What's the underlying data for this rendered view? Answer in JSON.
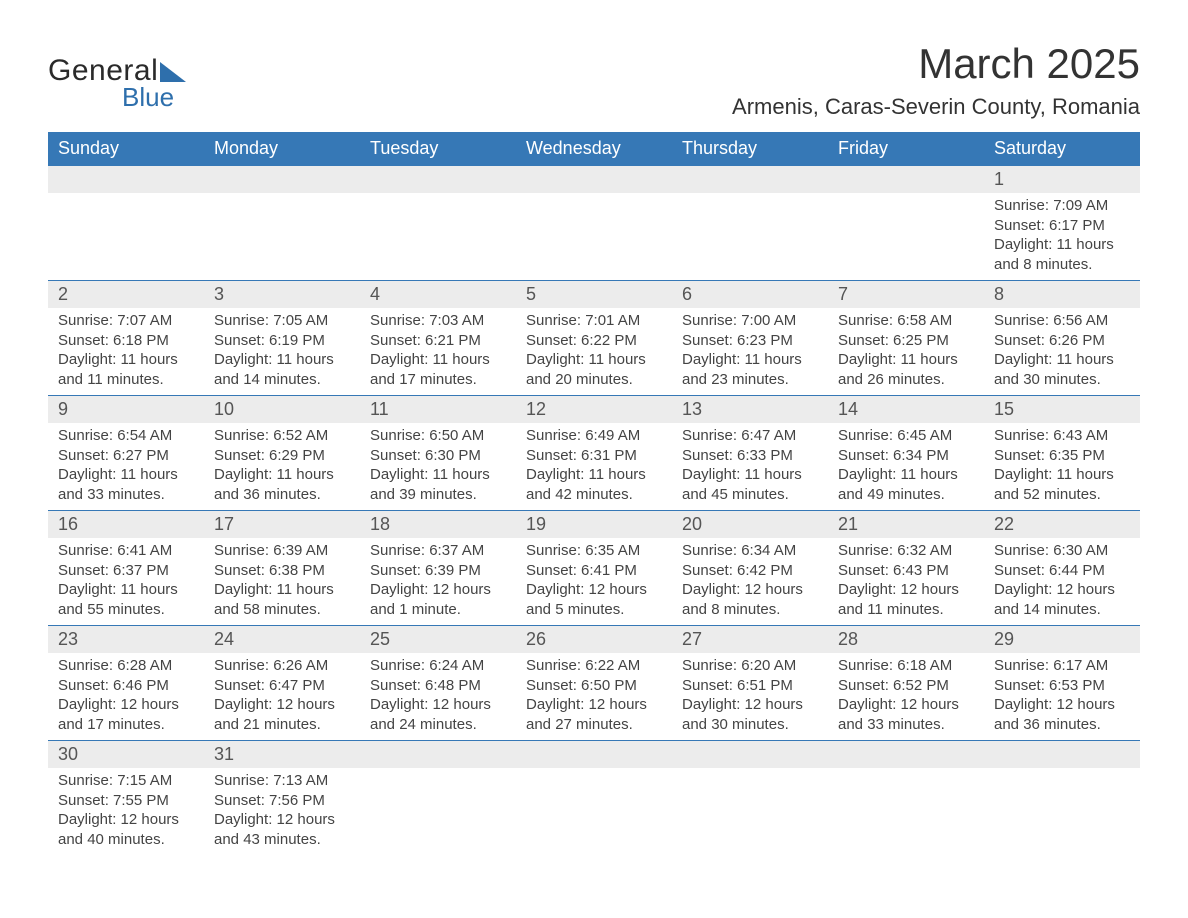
{
  "logo": {
    "part1": "General",
    "part2": "Blue"
  },
  "header": {
    "title": "March 2025",
    "location": "Armenis, Caras-Severin County, Romania"
  },
  "style": {
    "header_bg": "#3678b6",
    "header_text": "#ffffff",
    "row_separator": "#3678b6",
    "daynum_bg": "#ececec",
    "body_text": "#444444",
    "title_fontsize_pt": 32,
    "location_fontsize_pt": 17,
    "dayheader_fontsize_pt": 14,
    "cell_fontsize_pt": 11
  },
  "calendar": {
    "type": "table",
    "columns": [
      "Sunday",
      "Monday",
      "Tuesday",
      "Wednesday",
      "Thursday",
      "Friday",
      "Saturday"
    ],
    "weeks": [
      [
        null,
        null,
        null,
        null,
        null,
        null,
        {
          "d": "1",
          "sr": "Sunrise: 7:09 AM",
          "ss": "Sunset: 6:17 PM",
          "dl1": "Daylight: 11 hours",
          "dl2": "and 8 minutes."
        }
      ],
      [
        {
          "d": "2",
          "sr": "Sunrise: 7:07 AM",
          "ss": "Sunset: 6:18 PM",
          "dl1": "Daylight: 11 hours",
          "dl2": "and 11 minutes."
        },
        {
          "d": "3",
          "sr": "Sunrise: 7:05 AM",
          "ss": "Sunset: 6:19 PM",
          "dl1": "Daylight: 11 hours",
          "dl2": "and 14 minutes."
        },
        {
          "d": "4",
          "sr": "Sunrise: 7:03 AM",
          "ss": "Sunset: 6:21 PM",
          "dl1": "Daylight: 11 hours",
          "dl2": "and 17 minutes."
        },
        {
          "d": "5",
          "sr": "Sunrise: 7:01 AM",
          "ss": "Sunset: 6:22 PM",
          "dl1": "Daylight: 11 hours",
          "dl2": "and 20 minutes."
        },
        {
          "d": "6",
          "sr": "Sunrise: 7:00 AM",
          "ss": "Sunset: 6:23 PM",
          "dl1": "Daylight: 11 hours",
          "dl2": "and 23 minutes."
        },
        {
          "d": "7",
          "sr": "Sunrise: 6:58 AM",
          "ss": "Sunset: 6:25 PM",
          "dl1": "Daylight: 11 hours",
          "dl2": "and 26 minutes."
        },
        {
          "d": "8",
          "sr": "Sunrise: 6:56 AM",
          "ss": "Sunset: 6:26 PM",
          "dl1": "Daylight: 11 hours",
          "dl2": "and 30 minutes."
        }
      ],
      [
        {
          "d": "9",
          "sr": "Sunrise: 6:54 AM",
          "ss": "Sunset: 6:27 PM",
          "dl1": "Daylight: 11 hours",
          "dl2": "and 33 minutes."
        },
        {
          "d": "10",
          "sr": "Sunrise: 6:52 AM",
          "ss": "Sunset: 6:29 PM",
          "dl1": "Daylight: 11 hours",
          "dl2": "and 36 minutes."
        },
        {
          "d": "11",
          "sr": "Sunrise: 6:50 AM",
          "ss": "Sunset: 6:30 PM",
          "dl1": "Daylight: 11 hours",
          "dl2": "and 39 minutes."
        },
        {
          "d": "12",
          "sr": "Sunrise: 6:49 AM",
          "ss": "Sunset: 6:31 PM",
          "dl1": "Daylight: 11 hours",
          "dl2": "and 42 minutes."
        },
        {
          "d": "13",
          "sr": "Sunrise: 6:47 AM",
          "ss": "Sunset: 6:33 PM",
          "dl1": "Daylight: 11 hours",
          "dl2": "and 45 minutes."
        },
        {
          "d": "14",
          "sr": "Sunrise: 6:45 AM",
          "ss": "Sunset: 6:34 PM",
          "dl1": "Daylight: 11 hours",
          "dl2": "and 49 minutes."
        },
        {
          "d": "15",
          "sr": "Sunrise: 6:43 AM",
          "ss": "Sunset: 6:35 PM",
          "dl1": "Daylight: 11 hours",
          "dl2": "and 52 minutes."
        }
      ],
      [
        {
          "d": "16",
          "sr": "Sunrise: 6:41 AM",
          "ss": "Sunset: 6:37 PM",
          "dl1": "Daylight: 11 hours",
          "dl2": "and 55 minutes."
        },
        {
          "d": "17",
          "sr": "Sunrise: 6:39 AM",
          "ss": "Sunset: 6:38 PM",
          "dl1": "Daylight: 11 hours",
          "dl2": "and 58 minutes."
        },
        {
          "d": "18",
          "sr": "Sunrise: 6:37 AM",
          "ss": "Sunset: 6:39 PM",
          "dl1": "Daylight: 12 hours",
          "dl2": "and 1 minute."
        },
        {
          "d": "19",
          "sr": "Sunrise: 6:35 AM",
          "ss": "Sunset: 6:41 PM",
          "dl1": "Daylight: 12 hours",
          "dl2": "and 5 minutes."
        },
        {
          "d": "20",
          "sr": "Sunrise: 6:34 AM",
          "ss": "Sunset: 6:42 PM",
          "dl1": "Daylight: 12 hours",
          "dl2": "and 8 minutes."
        },
        {
          "d": "21",
          "sr": "Sunrise: 6:32 AM",
          "ss": "Sunset: 6:43 PM",
          "dl1": "Daylight: 12 hours",
          "dl2": "and 11 minutes."
        },
        {
          "d": "22",
          "sr": "Sunrise: 6:30 AM",
          "ss": "Sunset: 6:44 PM",
          "dl1": "Daylight: 12 hours",
          "dl2": "and 14 minutes."
        }
      ],
      [
        {
          "d": "23",
          "sr": "Sunrise: 6:28 AM",
          "ss": "Sunset: 6:46 PM",
          "dl1": "Daylight: 12 hours",
          "dl2": "and 17 minutes."
        },
        {
          "d": "24",
          "sr": "Sunrise: 6:26 AM",
          "ss": "Sunset: 6:47 PM",
          "dl1": "Daylight: 12 hours",
          "dl2": "and 21 minutes."
        },
        {
          "d": "25",
          "sr": "Sunrise: 6:24 AM",
          "ss": "Sunset: 6:48 PM",
          "dl1": "Daylight: 12 hours",
          "dl2": "and 24 minutes."
        },
        {
          "d": "26",
          "sr": "Sunrise: 6:22 AM",
          "ss": "Sunset: 6:50 PM",
          "dl1": "Daylight: 12 hours",
          "dl2": "and 27 minutes."
        },
        {
          "d": "27",
          "sr": "Sunrise: 6:20 AM",
          "ss": "Sunset: 6:51 PM",
          "dl1": "Daylight: 12 hours",
          "dl2": "and 30 minutes."
        },
        {
          "d": "28",
          "sr": "Sunrise: 6:18 AM",
          "ss": "Sunset: 6:52 PM",
          "dl1": "Daylight: 12 hours",
          "dl2": "and 33 minutes."
        },
        {
          "d": "29",
          "sr": "Sunrise: 6:17 AM",
          "ss": "Sunset: 6:53 PM",
          "dl1": "Daylight: 12 hours",
          "dl2": "and 36 minutes."
        }
      ],
      [
        {
          "d": "30",
          "sr": "Sunrise: 7:15 AM",
          "ss": "Sunset: 7:55 PM",
          "dl1": "Daylight: 12 hours",
          "dl2": "and 40 minutes."
        },
        {
          "d": "31",
          "sr": "Sunrise: 7:13 AM",
          "ss": "Sunset: 7:56 PM",
          "dl1": "Daylight: 12 hours",
          "dl2": "and 43 minutes."
        },
        null,
        null,
        null,
        null,
        null
      ]
    ]
  }
}
